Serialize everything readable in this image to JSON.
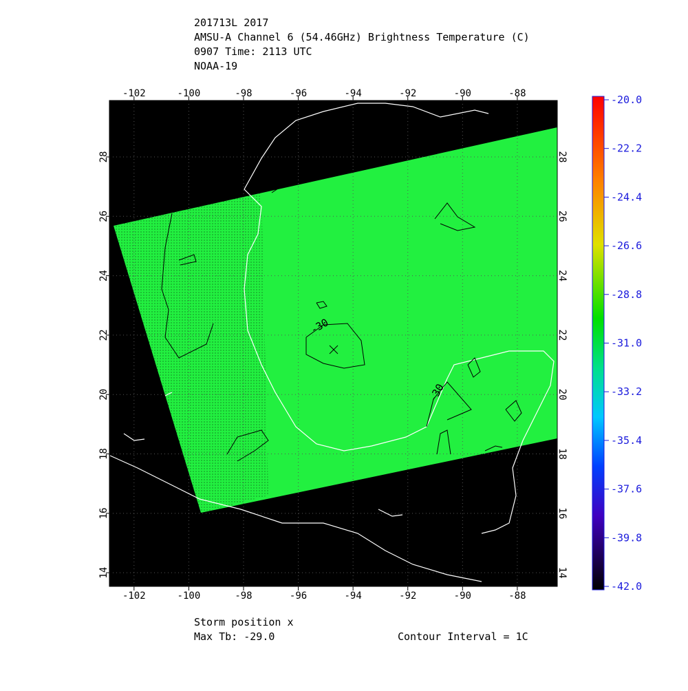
{
  "header": {
    "lines": [
      "201713L 2017",
      "AMSU-A Channel 6 (54.46GHz) Brightness Temperature (C)",
      "0907 Time: 2113 UTC",
      "NOAA-19"
    ]
  },
  "map": {
    "xlim": [
      -102.9,
      -86.54
    ],
    "ylim": [
      13.54,
      29.9
    ],
    "xticks": [
      -102,
      -100,
      -98,
      -96,
      -94,
      -92,
      -90,
      -88
    ],
    "yticks": [
      14,
      16,
      18,
      20,
      22,
      24,
      26,
      28
    ],
    "contour_labels": [
      "-30",
      "-30"
    ]
  },
  "colorbar": {
    "lim": [
      -42,
      -20
    ],
    "ticks": [
      {
        "value": -20,
        "label": "-20.0"
      },
      -22.2,
      -24.4,
      -26.6,
      -28.8,
      {
        "value": -31,
        "label": "-31.0"
      },
      -33.2,
      -35.4,
      -37.6,
      -39.8,
      {
        "value": -42,
        "label": "-42.0"
      }
    ]
  },
  "footer": {
    "storm": "Storm position x",
    "max_tb": "Max Tb: -29.0",
    "contour": "Contour Interval = 1C"
  }
}
